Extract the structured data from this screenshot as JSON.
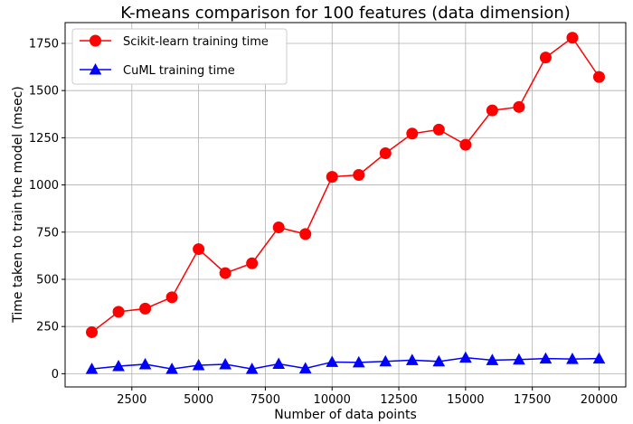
{
  "chart_data": {
    "type": "line",
    "title": "K-means comparison for 100 features (data dimension)",
    "xlabel": "Number of data points",
    "ylabel": "Time taken to train the model (msec)",
    "x": [
      1000,
      2000,
      3000,
      4000,
      5000,
      6000,
      7000,
      8000,
      9000,
      10000,
      11000,
      12000,
      13000,
      14000,
      15000,
      16000,
      17000,
      18000,
      19000,
      20000
    ],
    "xlim": [
      0,
      21000
    ],
    "ylim": [
      -70,
      1860
    ],
    "xticks": [
      2500,
      5000,
      7500,
      10000,
      12500,
      15000,
      17500,
      20000
    ],
    "yticks": [
      0,
      250,
      500,
      750,
      1000,
      1250,
      1500,
      1750
    ],
    "grid": true,
    "legend_position": "top-left",
    "series": [
      {
        "name": "Scikit-learn training time",
        "color": "#ff0000",
        "marker": "circle",
        "values": [
          220,
          328,
          345,
          405,
          660,
          533,
          585,
          775,
          740,
          1043,
          1053,
          1168,
          1272,
          1293,
          1213,
          1395,
          1413,
          1675,
          1780,
          1572
        ]
      },
      {
        "name": "CuML training time",
        "color": "#0000ff",
        "marker": "triangle",
        "values": [
          25,
          40,
          50,
          25,
          45,
          50,
          25,
          52,
          28,
          62,
          60,
          65,
          72,
          65,
          85,
          72,
          75,
          80,
          78,
          80
        ]
      }
    ]
  }
}
